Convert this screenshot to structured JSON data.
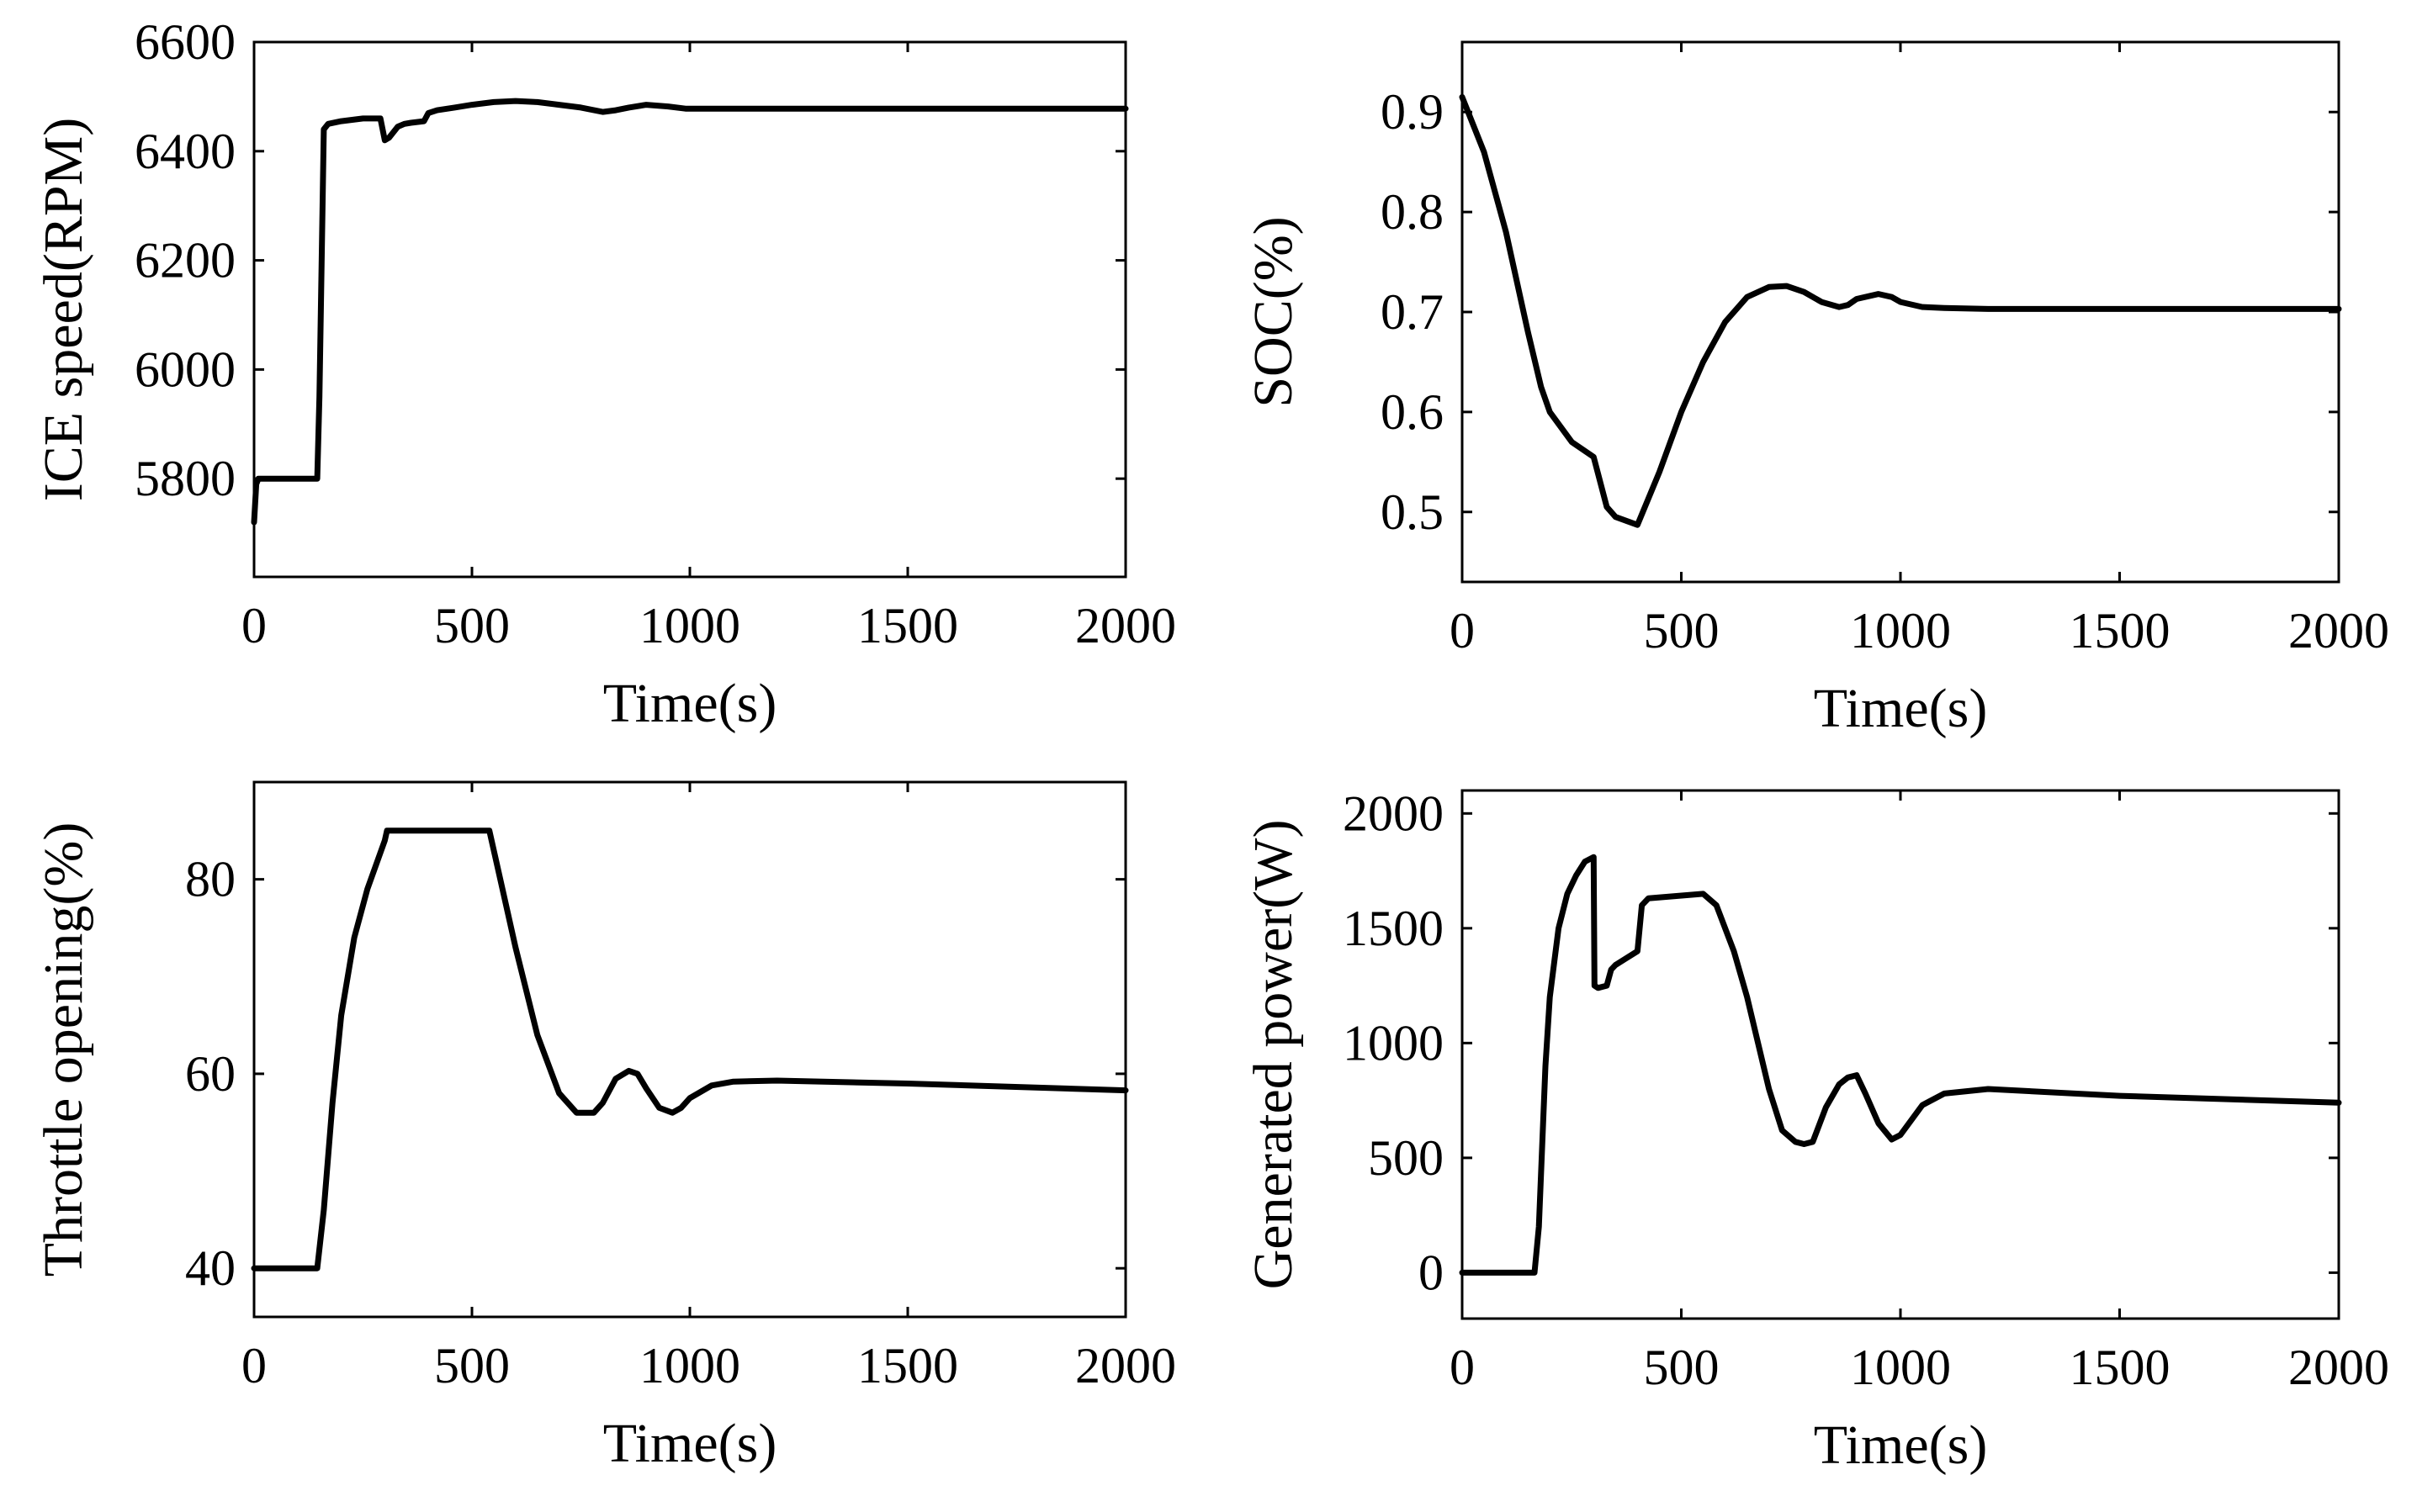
{
  "chart_data": [
    {
      "type": "line",
      "id": "ice-speed",
      "xlabel": "Time(s)",
      "ylabel": "ICE speed(RPM)",
      "xlim": [
        0,
        2000
      ],
      "ylim": [
        5620,
        6600
      ],
      "xticks": [
        0,
        500,
        1000,
        1500,
        2000
      ],
      "yticks": [
        5800,
        6000,
        6200,
        6400,
        6600
      ],
      "series": [
        {
          "name": "ICE speed",
          "x": [
            0,
            5,
            10,
            145,
            150,
            160,
            170,
            200,
            250,
            290,
            300,
            310,
            330,
            345,
            360,
            390,
            400,
            420,
            460,
            500,
            550,
            600,
            650,
            700,
            750,
            800,
            830,
            860,
            900,
            950,
            990,
            1000,
            1100,
            1500,
            2000
          ],
          "y": [
            5720,
            5790,
            5800,
            5800,
            5950,
            6440,
            6450,
            6455,
            6460,
            6460,
            6420,
            6425,
            6445,
            6450,
            6452,
            6455,
            6470,
            6475,
            6480,
            6485,
            6490,
            6492,
            6490,
            6485,
            6480,
            6472,
            6475,
            6480,
            6485,
            6482,
            6478,
            6478,
            6478,
            6478,
            6478
          ]
        }
      ]
    },
    {
      "type": "line",
      "id": "soc",
      "xlabel": "Time(s)",
      "ylabel": "SOC(%)",
      "xlim": [
        0,
        2000
      ],
      "ylim": [
        0.43,
        0.97
      ],
      "xticks": [
        0,
        500,
        1000,
        1500,
        2000
      ],
      "yticks": [
        0.5,
        0.6,
        0.7,
        0.8,
        0.9
      ],
      "ytick_labels": [
        "0.5",
        "0.6",
        "0.7",
        "0.8",
        "0.9"
      ],
      "series": [
        {
          "name": "SOC",
          "x": [
            0,
            50,
            100,
            150,
            180,
            200,
            250,
            300,
            330,
            350,
            400,
            450,
            500,
            550,
            600,
            650,
            700,
            740,
            780,
            820,
            860,
            880,
            900,
            950,
            980,
            1000,
            1050,
            1100,
            1200,
            1500,
            2000
          ],
          "y": [
            0.915,
            0.86,
            0.78,
            0.68,
            0.625,
            0.6,
            0.57,
            0.555,
            0.505,
            0.495,
            0.487,
            0.54,
            0.6,
            0.65,
            0.69,
            0.715,
            0.725,
            0.726,
            0.72,
            0.71,
            0.705,
            0.707,
            0.713,
            0.718,
            0.715,
            0.71,
            0.705,
            0.704,
            0.703,
            0.703,
            0.703
          ]
        }
      ]
    },
    {
      "type": "line",
      "id": "throttle",
      "xlabel": "Time(s)",
      "ylabel": "Throttle opening(%)",
      "xlim": [
        0,
        2000
      ],
      "ylim": [
        35,
        90
      ],
      "xticks": [
        0,
        500,
        1000,
        1500,
        2000
      ],
      "yticks": [
        40,
        60,
        80
      ],
      "series": [
        {
          "name": "Throttle opening",
          "x": [
            0,
            145,
            160,
            180,
            200,
            230,
            260,
            300,
            305,
            400,
            540,
            560,
            600,
            650,
            700,
            740,
            780,
            800,
            830,
            860,
            880,
            900,
            930,
            960,
            980,
            1000,
            1050,
            1100,
            1200,
            1500,
            2000
          ],
          "y": [
            40,
            40,
            46,
            57,
            66,
            74,
            79,
            84,
            85,
            85,
            85,
            81,
            73,
            64,
            58,
            56,
            56,
            57,
            59.5,
            60.3,
            60,
            58.5,
            56.5,
            56,
            56.5,
            57.5,
            58.8,
            59.2,
            59.3,
            59,
            58.3
          ]
        }
      ]
    },
    {
      "type": "line",
      "id": "generated-power",
      "xlabel": "Time(s)",
      "ylabel": "Generated power(W)",
      "xlim": [
        0,
        2000
      ],
      "ylim": [
        -200,
        2100
      ],
      "xticks": [
        0,
        500,
        1000,
        1500,
        2000
      ],
      "yticks": [
        0,
        500,
        1000,
        1500,
        2000
      ],
      "series": [
        {
          "name": "Generated power",
          "x": [
            0,
            165,
            175,
            190,
            200,
            220,
            240,
            260,
            280,
            300,
            302,
            310,
            330,
            340,
            350,
            400,
            410,
            425,
            550,
            580,
            620,
            650,
            700,
            730,
            760,
            780,
            800,
            830,
            860,
            880,
            900,
            920,
            950,
            980,
            1000,
            1050,
            1100,
            1200,
            1500,
            2000
          ],
          "y": [
            0,
            0,
            200,
            900,
            1200,
            1500,
            1650,
            1730,
            1790,
            1810,
            1250,
            1240,
            1250,
            1320,
            1340,
            1400,
            1600,
            1630,
            1650,
            1600,
            1400,
            1200,
            800,
            620,
            570,
            560,
            570,
            720,
            820,
            850,
            860,
            780,
            650,
            580,
            600,
            730,
            780,
            800,
            770,
            740
          ]
        }
      ]
    }
  ]
}
